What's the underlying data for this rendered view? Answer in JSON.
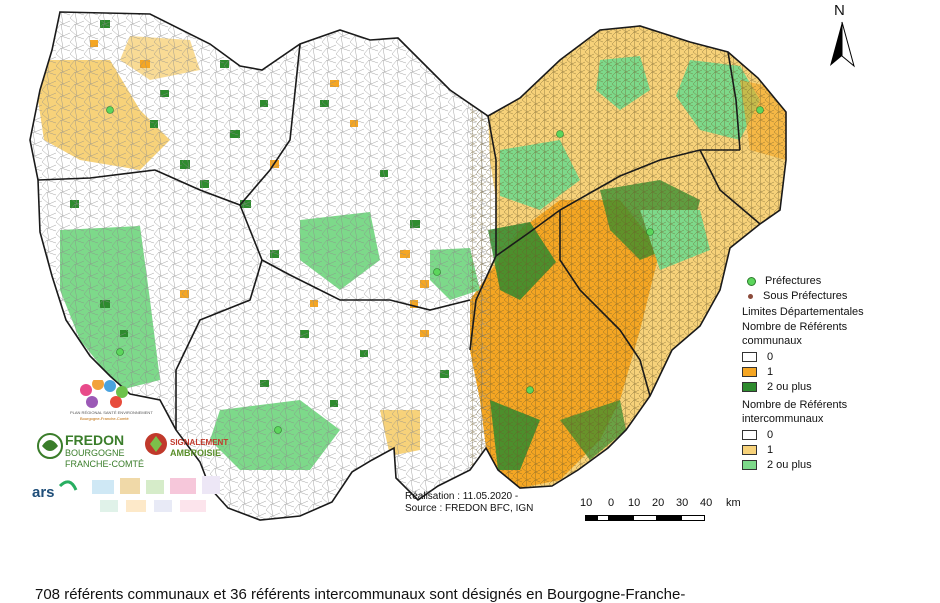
{
  "north_label": "N",
  "legend": {
    "prefectures": "Préfectures",
    "sous_prefectures": "Sous Préfectures",
    "limites": "Limites Départementales",
    "communaux_title_1": "Nombre de Référents",
    "communaux_title_2": "communaux",
    "communaux_items": [
      "0",
      "1",
      "2 ou plus"
    ],
    "intercom_title_1": "Nombre de Référents",
    "intercom_title_2": "intercommunaux",
    "intercom_items": [
      "0",
      "1",
      "2 ou plus"
    ]
  },
  "credit_line_1": "Réalisation : 11.05.2020 -",
  "credit_line_2": "Source : FREDON BFC, IGN",
  "scale": {
    "ticks": [
      "10",
      "0",
      "10",
      "20",
      "30",
      "40"
    ],
    "unit": "km"
  },
  "logos": {
    "fredon_1": "FREDON",
    "fredon_2": "BOURGOGNE",
    "fredon_3": "FRANCHE-COMTÉ",
    "signalement_1": "SIGNALEMENT",
    "signalement_2": "AMBROISIE",
    "ars": "ars",
    "pse": "PLAN RÉGIONAL SANTÉ ENVIRONNEMENT",
    "pse_2": "Bourgogne-Franche-Comté"
  },
  "caption": "708 référents communaux et 36 référents intercommunaux sont désignés en Bourgogne-Franche-",
  "colors": {
    "com_0": "#ffffff",
    "com_1": "#f5a623",
    "com_2": "#2e8b2e",
    "inter_1": "#f7d27a",
    "inter_2": "#7dd98a",
    "prefecture": "#5cd65c",
    "sous_prefecture": "#8b4a3a"
  }
}
